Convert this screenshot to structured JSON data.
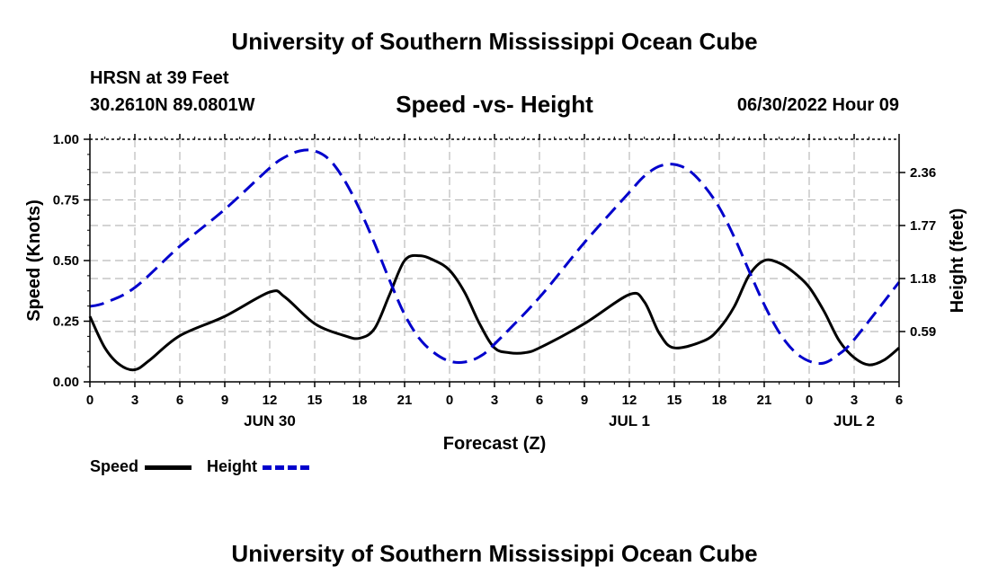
{
  "header": {
    "title": "University of Southern Mississippi Ocean Cube",
    "station": "HRSN at 39 Feet",
    "coords": "30.2610N  89.0801W",
    "subtitle": "Speed -vs- Height",
    "datetime": "06/30/2022 Hour 09"
  },
  "footer": {
    "title": "University of Southern Mississippi Ocean Cube"
  },
  "legend": {
    "speed_label": "Speed",
    "height_label": "Height"
  },
  "colors": {
    "speed": "#000000",
    "height": "#0000cc",
    "grid": "#bbbbbb"
  },
  "chart_data": {
    "type": "line",
    "xlabel": "Forecast (Z)",
    "ylabel_left": "Speed (Knots)",
    "ylabel_right": "Height (feet)",
    "xlim": [
      0,
      54
    ],
    "ylim_left": [
      0,
      1
    ],
    "ylim_right": [
      0.03,
      2.73
    ],
    "grid": true,
    "x_ticks": [
      0,
      3,
      6,
      9,
      12,
      15,
      18,
      21,
      24,
      27,
      30,
      33,
      36,
      39,
      42,
      45,
      48,
      51,
      54
    ],
    "x_tick_labels": [
      "0",
      "3",
      "6",
      "9",
      "12",
      "15",
      "18",
      "21",
      "0",
      "3",
      "6",
      "9",
      "12",
      "15",
      "18",
      "21",
      "0",
      "3",
      "6"
    ],
    "date_labels": [
      {
        "x": 12,
        "label": "JUN 30"
      },
      {
        "x": 36,
        "label": "JUL 1"
      },
      {
        "x": 51,
        "label": "JUL 2"
      }
    ],
    "y_left_ticks": [
      0,
      0.25,
      0.5,
      0.75,
      1.0
    ],
    "y_left_tick_labels": [
      "0.00",
      "0.25",
      "0.50",
      "0.75",
      "1.00"
    ],
    "y_right_ticks": [
      0.59,
      1.18,
      1.77,
      2.36
    ],
    "y_right_tick_labels": [
      "0.59",
      "1.18",
      "1.77",
      "2.36"
    ],
    "series": [
      {
        "name": "Speed",
        "axis": "left",
        "style": "solid",
        "x": [
          0,
          1,
          2,
          3,
          4,
          6,
          9,
          12,
          13,
          15,
          17,
          18,
          19,
          20,
          21,
          22,
          23,
          24,
          25,
          26,
          27,
          28,
          29,
          30,
          33,
          36,
          37,
          38,
          39,
          41,
          42,
          43,
          44,
          45,
          46,
          47,
          48,
          49,
          50,
          51,
          52,
          53,
          54
        ],
        "values": [
          0.27,
          0.14,
          0.07,
          0.05,
          0.09,
          0.19,
          0.27,
          0.37,
          0.35,
          0.24,
          0.19,
          0.18,
          0.22,
          0.36,
          0.5,
          0.52,
          0.5,
          0.46,
          0.37,
          0.24,
          0.14,
          0.12,
          0.12,
          0.14,
          0.24,
          0.36,
          0.33,
          0.2,
          0.14,
          0.17,
          0.22,
          0.31,
          0.44,
          0.5,
          0.49,
          0.45,
          0.39,
          0.29,
          0.17,
          0.1,
          0.07,
          0.09,
          0.14
        ]
      },
      {
        "name": "Height",
        "axis": "right",
        "style": "dashed",
        "x": [
          0,
          1,
          3,
          6,
          9,
          12,
          13,
          14,
          15,
          16,
          17,
          18,
          19,
          20,
          21,
          22,
          23,
          24,
          25,
          26,
          27,
          30,
          33,
          36,
          37,
          38,
          39,
          40,
          41,
          42,
          43,
          44,
          45,
          46,
          47,
          48,
          49,
          50,
          51,
          54
        ],
        "values": [
          0.87,
          0.91,
          1.08,
          1.54,
          1.95,
          2.41,
          2.53,
          2.6,
          2.6,
          2.5,
          2.27,
          1.95,
          1.57,
          1.16,
          0.78,
          0.51,
          0.35,
          0.26,
          0.25,
          0.31,
          0.45,
          0.97,
          1.58,
          2.14,
          2.32,
          2.43,
          2.45,
          2.38,
          2.21,
          1.97,
          1.64,
          1.26,
          0.89,
          0.58,
          0.37,
          0.26,
          0.24,
          0.34,
          0.5,
          1.14
        ]
      }
    ]
  }
}
